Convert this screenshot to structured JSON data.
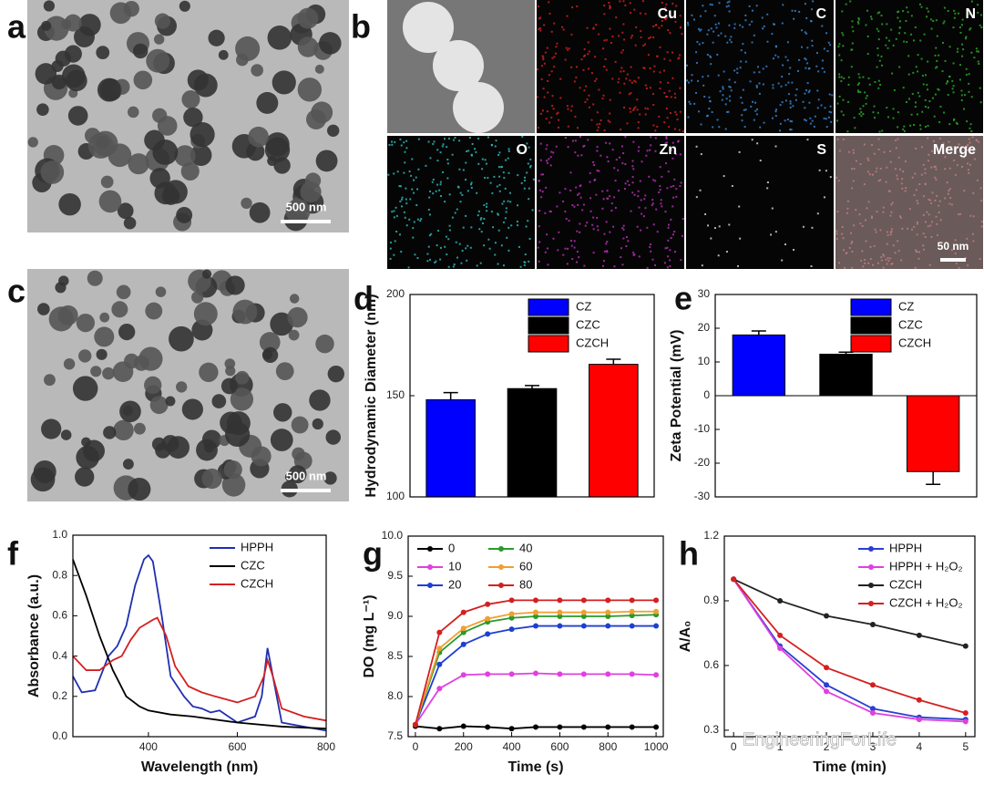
{
  "panel_labels": [
    "a",
    "b",
    "c",
    "d",
    "e",
    "f",
    "g",
    "h"
  ],
  "images": {
    "a": {
      "scale_bar": "500 nm"
    },
    "b": {
      "tiles": [
        "Cu",
        "C",
        "N",
        "O",
        "Zn",
        "S",
        "Merge"
      ],
      "scale_bar": "50 nm"
    },
    "c": {
      "scale_bar": "500 nm"
    }
  },
  "watermark": "EngineeringForLife",
  "chart_data": [
    {
      "type": "bar",
      "ylabel": "Hydrodynamic Diameter (nm)",
      "categories": [
        "CZ",
        "CZC",
        "CZCH"
      ],
      "values": [
        148,
        153.5,
        165.5
      ],
      "errors": [
        3.5,
        1.5,
        2.5
      ],
      "colors": [
        "#0000ff",
        "#000000",
        "#ff0000"
      ],
      "ylim": [
        100,
        200
      ],
      "yticks": [
        100,
        150,
        200
      ],
      "legend": "upper right"
    },
    {
      "type": "bar",
      "ylabel": "Zeta Potential (mV)",
      "categories": [
        "CZ",
        "CZC",
        "CZCH"
      ],
      "values": [
        18,
        12.3,
        -22.5
      ],
      "errors": [
        1.2,
        0.6,
        3.8
      ],
      "colors": [
        "#0000ff",
        "#000000",
        "#ff0000"
      ],
      "ylim": [
        -30,
        30
      ],
      "yticks": [
        -30,
        -20,
        -10,
        0,
        10,
        20,
        30
      ],
      "legend": "upper right"
    },
    {
      "type": "line",
      "xlabel": "Wavelength (nm)",
      "ylabel": "Absorbance (a.u.)",
      "xlim": [
        230,
        800
      ],
      "xticks": [
        400,
        600,
        800
      ],
      "ylim": [
        0,
        1.0
      ],
      "yticks": [
        {
          "value": 0,
          "label": "0.0"
        },
        0.2,
        0.4,
        0.6,
        0.8,
        {
          "value": 1.0,
          "label": "1.0"
        }
      ],
      "legend": "upper right",
      "markers": false,
      "series": [
        {
          "name": "HPPH",
          "color": "#1f2fb0",
          "x": [
            230,
            250,
            280,
            310,
            330,
            350,
            370,
            390,
            400,
            410,
            430,
            450,
            480,
            500,
            520,
            540,
            560,
            600,
            640,
            655,
            668,
            680,
            700,
            750,
            800
          ],
          "values": [
            0.3,
            0.22,
            0.23,
            0.4,
            0.45,
            0.55,
            0.75,
            0.88,
            0.9,
            0.87,
            0.6,
            0.3,
            0.2,
            0.15,
            0.14,
            0.12,
            0.13,
            0.07,
            0.1,
            0.2,
            0.44,
            0.3,
            0.07,
            0.05,
            0.03
          ]
        },
        {
          "name": "CZC",
          "color": "#000000",
          "x": [
            230,
            260,
            290,
            320,
            350,
            380,
            400,
            450,
            500,
            600,
            700,
            800
          ],
          "values": [
            0.88,
            0.7,
            0.5,
            0.33,
            0.2,
            0.15,
            0.13,
            0.11,
            0.1,
            0.07,
            0.05,
            0.04
          ]
        },
        {
          "name": "CZCH",
          "color": "#d42020",
          "x": [
            230,
            260,
            290,
            320,
            340,
            360,
            380,
            410,
            420,
            440,
            460,
            490,
            520,
            550,
            600,
            640,
            660,
            668,
            680,
            700,
            750,
            800
          ],
          "values": [
            0.4,
            0.33,
            0.33,
            0.38,
            0.4,
            0.48,
            0.54,
            0.58,
            0.59,
            0.5,
            0.35,
            0.25,
            0.22,
            0.2,
            0.17,
            0.2,
            0.3,
            0.38,
            0.3,
            0.14,
            0.1,
            0.08
          ]
        }
      ]
    },
    {
      "type": "line",
      "xlabel": "Time (s)",
      "ylabel": "DO (mg L⁻¹)",
      "xlim": [
        -30,
        1030
      ],
      "xticks": [
        0,
        200,
        400,
        600,
        800,
        1000
      ],
      "ylim": [
        7.5,
        10.0
      ],
      "yticks": [
        7.5,
        {
          "value": 8.0,
          "label": "8.0"
        },
        8.5,
        {
          "value": 9.0,
          "label": "9.0"
        },
        9.5,
        {
          "value": 10.0,
          "label": "10.0"
        }
      ],
      "legend": "upper left",
      "markers": true,
      "x": [
        0,
        100,
        200,
        300,
        400,
        500,
        600,
        700,
        800,
        900,
        1000
      ],
      "series": [
        {
          "name": "0",
          "color": "#000000",
          "values": [
            7.63,
            7.6,
            7.63,
            7.62,
            7.6,
            7.62,
            7.62,
            7.62,
            7.62,
            7.62,
            7.62
          ]
        },
        {
          "name": "10",
          "color": "#e040e0",
          "values": [
            7.65,
            8.1,
            8.27,
            8.28,
            8.28,
            8.29,
            8.28,
            8.28,
            8.28,
            8.28,
            8.27
          ]
        },
        {
          "name": "20",
          "color": "#1f3fd0",
          "values": [
            7.65,
            8.4,
            8.65,
            8.78,
            8.84,
            8.88,
            8.88,
            8.88,
            8.88,
            8.88,
            8.88
          ]
        },
        {
          "name": "40",
          "color": "#2a9a2a",
          "values": [
            7.65,
            8.55,
            8.8,
            8.93,
            8.98,
            9.0,
            9.0,
            9.0,
            9.0,
            9.01,
            9.02
          ]
        },
        {
          "name": "60",
          "color": "#f0a030",
          "values": [
            7.65,
            8.6,
            8.85,
            8.97,
            9.03,
            9.05,
            9.05,
            9.05,
            9.05,
            9.06,
            9.06
          ]
        },
        {
          "name": "80",
          "color": "#d42020",
          "values": [
            7.65,
            8.8,
            9.05,
            9.15,
            9.2,
            9.2,
            9.2,
            9.2,
            9.2,
            9.2,
            9.2
          ]
        }
      ]
    },
    {
      "type": "line",
      "xlabel": "Time (min)",
      "ylabel": "A/A₀",
      "xlim": [
        -0.2,
        5.2
      ],
      "xticks": [
        0,
        1,
        2,
        3,
        4,
        5
      ],
      "ylim": [
        0.27,
        1.2
      ],
      "yticks": [
        0.3,
        0.6,
        0.9,
        1.2
      ],
      "legend": "upper right",
      "markers": true,
      "x": [
        0,
        1,
        2,
        3,
        4,
        5
      ],
      "series": [
        {
          "name": "HPPH",
          "color": "#2a3fd0",
          "values": [
            1,
            0.69,
            0.51,
            0.4,
            0.36,
            0.35
          ]
        },
        {
          "name": "HPPH + H₂O₂",
          "color": "#e040e0",
          "values": [
            1,
            0.68,
            0.48,
            0.38,
            0.35,
            0.34
          ]
        },
        {
          "name": "CZCH",
          "color": "#222222",
          "values": [
            1,
            0.9,
            0.83,
            0.79,
            0.74,
            0.69
          ]
        },
        {
          "name": "CZCH + H₂O₂",
          "color": "#d42020",
          "values": [
            1,
            0.74,
            0.59,
            0.51,
            0.44,
            0.38
          ]
        }
      ]
    }
  ]
}
